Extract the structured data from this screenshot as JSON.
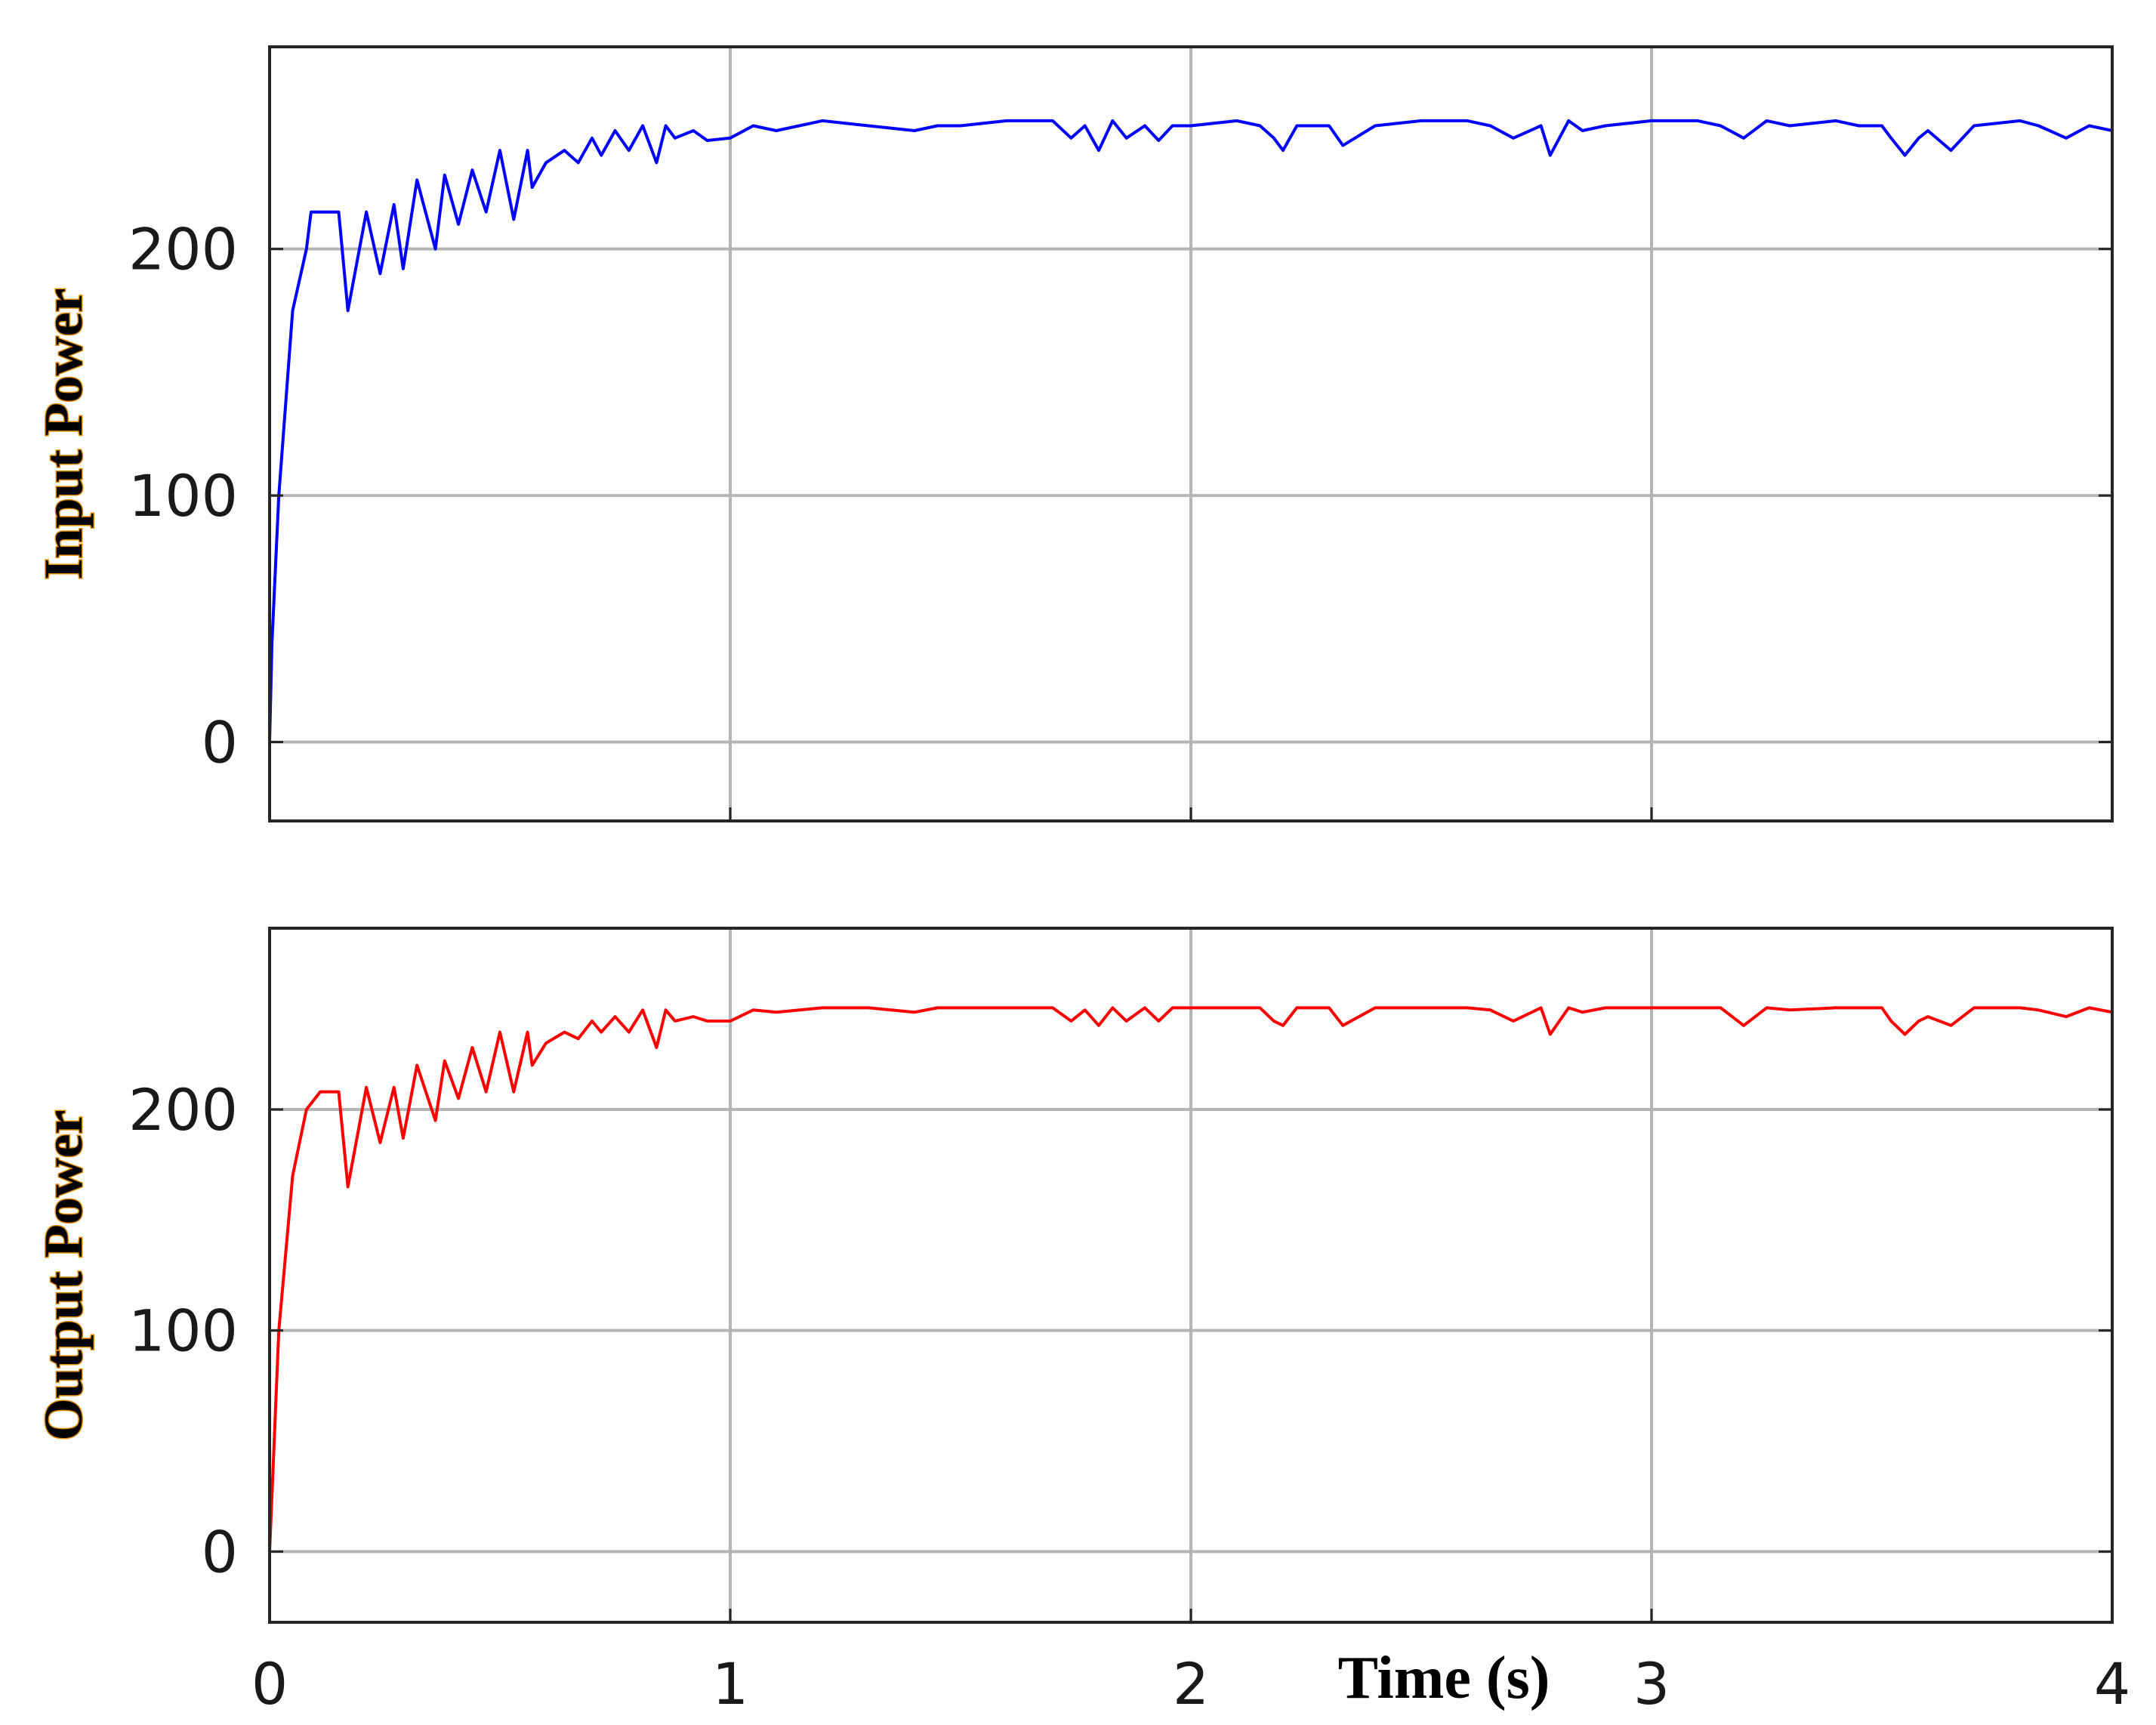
{
  "chart_data": [
    {
      "type": "line",
      "ylabel": "Input Power",
      "xlabel": "",
      "xlim": [
        0,
        4
      ],
      "ylim": [
        -32,
        282
      ],
      "xticks": [
        0,
        1,
        2,
        3,
        4
      ],
      "yticks": [
        0,
        100,
        200
      ],
      "ytick_labels": [
        "0",
        "100",
        "200"
      ],
      "grid": true,
      "series": [
        {
          "color": "#0000ff",
          "x": [
            0,
            0.005,
            0.02,
            0.05,
            0.08,
            0.09,
            0.15,
            0.17,
            0.21,
            0.24,
            0.27,
            0.29,
            0.32,
            0.36,
            0.38,
            0.41,
            0.44,
            0.47,
            0.5,
            0.53,
            0.56,
            0.57,
            0.6,
            0.64,
            0.67,
            0.7,
            0.72,
            0.75,
            0.78,
            0.81,
            0.84,
            0.86,
            0.88,
            0.92,
            0.95,
            1.0,
            1.05,
            1.1,
            1.2,
            1.3,
            1.4,
            1.45,
            1.5,
            1.6,
            1.7,
            1.74,
            1.77,
            1.8,
            1.83,
            1.86,
            1.9,
            1.93,
            1.96,
            2.0,
            2.1,
            2.15,
            2.18,
            2.2,
            2.23,
            2.3,
            2.33,
            2.4,
            2.5,
            2.6,
            2.65,
            2.7,
            2.76,
            2.78,
            2.82,
            2.85,
            2.9,
            3.0,
            3.1,
            3.15,
            3.2,
            3.25,
            3.3,
            3.4,
            3.45,
            3.5,
            3.52,
            3.55,
            3.58,
            3.6,
            3.65,
            3.7,
            3.8,
            3.84,
            3.9,
            3.95,
            4.0
          ],
          "values": [
            0,
            40,
            100,
            175,
            200,
            215,
            215,
            175,
            215,
            190,
            218,
            192,
            228,
            200,
            230,
            210,
            232,
            215,
            240,
            212,
            240,
            225,
            235,
            240,
            235,
            245,
            238,
            248,
            240,
            250,
            235,
            250,
            245,
            248,
            244,
            245,
            250,
            248,
            252,
            250,
            248,
            250,
            250,
            252,
            252,
            245,
            250,
            240,
            252,
            245,
            250,
            244,
            250,
            250,
            252,
            250,
            245,
            240,
            250,
            250,
            242,
            250,
            252,
            252,
            250,
            245,
            250,
            238,
            252,
            248,
            250,
            252,
            252,
            250,
            245,
            252,
            250,
            252,
            250,
            250,
            245,
            238,
            245,
            248,
            240,
            250,
            252,
            250,
            245,
            250,
            248
          ]
        }
      ]
    },
    {
      "type": "line",
      "ylabel": "Output Power",
      "xlabel": "Time (s)",
      "xlim": [
        0,
        4
      ],
      "ylim": [
        -32,
        282
      ],
      "xticks": [
        0,
        1,
        2,
        3,
        4
      ],
      "xtick_labels": [
        "0",
        "1",
        "2",
        "3",
        "4"
      ],
      "yticks": [
        0,
        100,
        200
      ],
      "ytick_labels": [
        "0",
        "100",
        "200"
      ],
      "grid": true,
      "series": [
        {
          "color": "#ff0000",
          "x": [
            0,
            0.005,
            0.02,
            0.05,
            0.08,
            0.11,
            0.15,
            0.17,
            0.21,
            0.24,
            0.27,
            0.29,
            0.32,
            0.36,
            0.38,
            0.41,
            0.44,
            0.47,
            0.5,
            0.53,
            0.56,
            0.57,
            0.6,
            0.64,
            0.67,
            0.7,
            0.72,
            0.75,
            0.78,
            0.81,
            0.84,
            0.86,
            0.88,
            0.92,
            0.95,
            1.0,
            1.05,
            1.1,
            1.2,
            1.3,
            1.4,
            1.45,
            1.5,
            1.6,
            1.7,
            1.74,
            1.77,
            1.8,
            1.83,
            1.86,
            1.9,
            1.93,
            1.96,
            2.0,
            2.1,
            2.15,
            2.18,
            2.2,
            2.23,
            2.3,
            2.33,
            2.4,
            2.5,
            2.6,
            2.65,
            2.7,
            2.76,
            2.78,
            2.82,
            2.85,
            2.9,
            3.0,
            3.1,
            3.15,
            3.2,
            3.25,
            3.3,
            3.4,
            3.45,
            3.5,
            3.52,
            3.55,
            3.58,
            3.6,
            3.65,
            3.7,
            3.8,
            3.84,
            3.9,
            3.95,
            4.0
          ],
          "values": [
            0,
            25,
            100,
            170,
            200,
            208,
            208,
            165,
            210,
            185,
            210,
            187,
            220,
            195,
            222,
            205,
            228,
            208,
            235,
            208,
            235,
            220,
            230,
            235,
            232,
            240,
            235,
            242,
            235,
            245,
            228,
            245,
            240,
            242,
            240,
            240,
            245,
            244,
            246,
            246,
            244,
            246,
            246,
            246,
            246,
            240,
            245,
            238,
            246,
            240,
            246,
            240,
            246,
            246,
            246,
            246,
            240,
            238,
            246,
            246,
            238,
            246,
            246,
            246,
            245,
            240,
            246,
            234,
            246,
            244,
            246,
            246,
            246,
            246,
            238,
            246,
            245,
            246,
            246,
            246,
            240,
            234,
            240,
            242,
            238,
            246,
            246,
            245,
            242,
            246,
            244
          ]
        }
      ]
    }
  ]
}
